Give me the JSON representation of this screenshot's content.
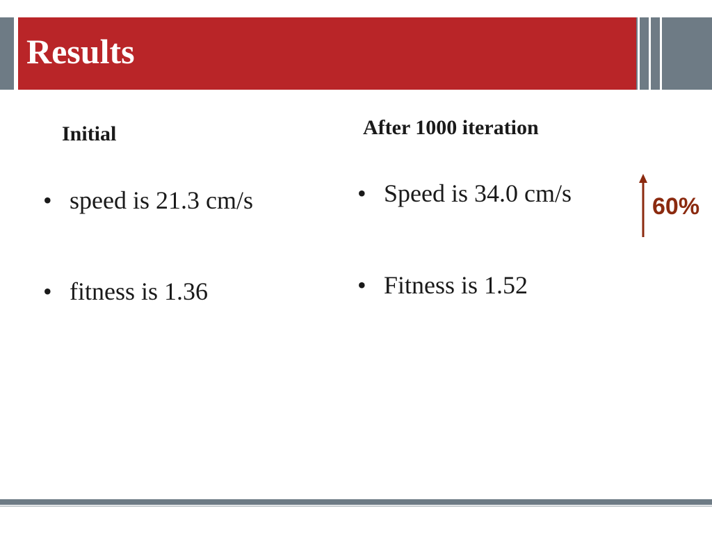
{
  "slide": {
    "title": "Results",
    "columns": [
      {
        "heading": "Initial",
        "bullets": [
          "speed is 21.3 cm/s",
          "fitness is 1.36"
        ]
      },
      {
        "heading": "After 1000 iteration",
        "bullets": [
          "Speed is 34.0 cm/s",
          "Fitness is 1.52"
        ]
      }
    ],
    "improvement": {
      "label": "60%",
      "icon": "up-arrow-icon"
    },
    "bullet_glyph": "•"
  },
  "colors": {
    "header_red": "#b92528",
    "accent_gray": "#6e7b85",
    "arrow_brown": "#8b2a0f",
    "text": "#1a1a1a"
  }
}
